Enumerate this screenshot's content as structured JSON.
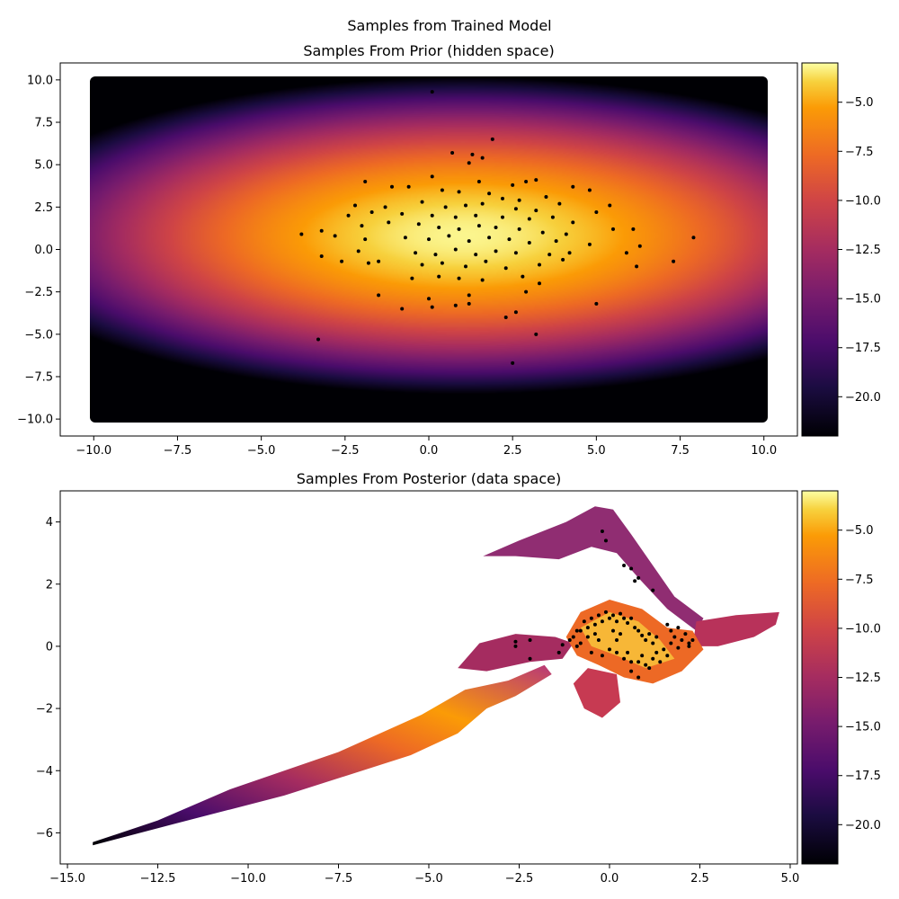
{
  "figure": {
    "suptitle": "Samples from Trained Model"
  },
  "chart_data": [
    {
      "type": "scatter",
      "title": "Samples From Prior (hidden space)",
      "xlabel": "",
      "ylabel": "",
      "xlim": [
        -11,
        11
      ],
      "ylim": [
        -11,
        11
      ],
      "xticks": [
        -10.0,
        -7.5,
        -5.0,
        -2.5,
        0.0,
        2.5,
        5.0,
        7.5,
        10.0
      ],
      "yticks": [
        -10.0,
        -7.5,
        -5.0,
        -2.5,
        0.0,
        2.5,
        5.0,
        7.5,
        10.0
      ],
      "xtick_labels": [
        "−10.0",
        "−7.5",
        "−5.0",
        "−2.5",
        "0.0",
        "2.5",
        "5.0",
        "7.5",
        "10.0"
      ],
      "ytick_labels": [
        "−10.0",
        "−7.5",
        "−5.0",
        "−2.5",
        "0.0",
        "2.5",
        "5.0",
        "7.5",
        "10.0"
      ],
      "grid": false,
      "background": {
        "type": "heatmap",
        "description_value": "log density of prior over [-10,10]x[-10,10]",
        "x_range": [
          -10,
          10
        ],
        "y_range": [
          -10,
          10
        ],
        "center": [
          1.0,
          0.8
        ],
        "sigma_x": 2.5,
        "sigma_y": 1.6,
        "colormap": "inferno",
        "value_range": [
          -22,
          -3
        ]
      },
      "colorbar": {
        "range": [
          -22,
          -3
        ],
        "ticks": [
          -5.0,
          -7.5,
          -10.0,
          -12.5,
          -15.0,
          -17.5,
          -20.0
        ],
        "tick_labels": [
          "−5.0",
          "−7.5",
          "−10.0",
          "−12.5",
          "−15.0",
          "−17.5",
          "−20.0"
        ]
      },
      "series": [
        {
          "points": [
            [
              0.1,
              9.3
            ],
            [
              1.9,
              6.5
            ],
            [
              0.7,
              5.7
            ],
            [
              1.3,
              5.6
            ],
            [
              1.6,
              5.4
            ],
            [
              1.2,
              5.1
            ],
            [
              3.2,
              4.1
            ],
            [
              2.9,
              4.0
            ],
            [
              -1.9,
              4.0
            ],
            [
              0.1,
              4.3
            ],
            [
              1.5,
              4.0
            ],
            [
              2.5,
              3.8
            ],
            [
              4.3,
              3.7
            ],
            [
              4.8,
              3.5
            ],
            [
              -1.1,
              3.7
            ],
            [
              -0.6,
              3.7
            ],
            [
              0.4,
              3.5
            ],
            [
              3.5,
              3.1
            ],
            [
              2.2,
              3.0
            ],
            [
              0.9,
              3.4
            ],
            [
              1.8,
              3.3
            ],
            [
              2.7,
              2.9
            ],
            [
              5.4,
              2.6
            ],
            [
              3.9,
              2.7
            ],
            [
              -2.2,
              2.6
            ],
            [
              -1.3,
              2.5
            ],
            [
              -0.2,
              2.8
            ],
            [
              0.5,
              2.5
            ],
            [
              1.1,
              2.6
            ],
            [
              1.6,
              2.7
            ],
            [
              2.6,
              2.4
            ],
            [
              3.2,
              2.3
            ],
            [
              5.0,
              2.2
            ],
            [
              -2.4,
              2.0
            ],
            [
              -1.7,
              2.2
            ],
            [
              -0.8,
              2.1
            ],
            [
              0.1,
              2.0
            ],
            [
              0.8,
              1.9
            ],
            [
              1.4,
              2.0
            ],
            [
              2.2,
              1.9
            ],
            [
              3.0,
              1.8
            ],
            [
              3.7,
              1.9
            ],
            [
              4.3,
              1.6
            ],
            [
              -3.8,
              0.9
            ],
            [
              -3.2,
              1.1
            ],
            [
              -2.0,
              1.4
            ],
            [
              -1.2,
              1.6
            ],
            [
              -0.3,
              1.5
            ],
            [
              0.3,
              1.3
            ],
            [
              0.9,
              1.2
            ],
            [
              1.5,
              1.4
            ],
            [
              2.0,
              1.3
            ],
            [
              2.7,
              1.2
            ],
            [
              3.4,
              1.0
            ],
            [
              4.1,
              0.9
            ],
            [
              5.5,
              1.2
            ],
            [
              6.1,
              1.2
            ],
            [
              -2.8,
              0.8
            ],
            [
              -1.9,
              0.6
            ],
            [
              -0.7,
              0.7
            ],
            [
              0.0,
              0.6
            ],
            [
              0.6,
              0.8
            ],
            [
              1.2,
              0.5
            ],
            [
              1.8,
              0.7
            ],
            [
              2.4,
              0.6
            ],
            [
              3.0,
              0.4
            ],
            [
              3.8,
              0.5
            ],
            [
              4.8,
              0.3
            ],
            [
              7.9,
              0.7
            ],
            [
              -3.2,
              -0.4
            ],
            [
              -2.1,
              -0.1
            ],
            [
              -1.5,
              -0.7
            ],
            [
              -0.4,
              -0.2
            ],
            [
              0.2,
              -0.3
            ],
            [
              0.8,
              0.0
            ],
            [
              1.4,
              -0.3
            ],
            [
              2.0,
              -0.1
            ],
            [
              2.6,
              -0.2
            ],
            [
              3.6,
              -0.3
            ],
            [
              4.2,
              -0.2
            ],
            [
              5.9,
              -0.2
            ],
            [
              6.3,
              0.2
            ],
            [
              -2.6,
              -0.7
            ],
            [
              -1.8,
              -0.8
            ],
            [
              -0.2,
              -0.9
            ],
            [
              0.4,
              -0.8
            ],
            [
              1.1,
              -1.0
            ],
            [
              1.7,
              -0.7
            ],
            [
              2.3,
              -1.1
            ],
            [
              3.3,
              -0.9
            ],
            [
              4.0,
              -0.6
            ],
            [
              6.2,
              -1.0
            ],
            [
              7.3,
              -0.7
            ],
            [
              -0.5,
              -1.7
            ],
            [
              0.3,
              -1.6
            ],
            [
              0.9,
              -1.7
            ],
            [
              1.6,
              -1.8
            ],
            [
              2.8,
              -1.6
            ],
            [
              3.3,
              -2.0
            ],
            [
              -1.5,
              -2.7
            ],
            [
              0.0,
              -2.9
            ],
            [
              1.2,
              -2.7
            ],
            [
              2.9,
              -2.5
            ],
            [
              -0.8,
              -3.5
            ],
            [
              0.1,
              -3.4
            ],
            [
              0.8,
              -3.3
            ],
            [
              1.2,
              -3.2
            ],
            [
              2.6,
              -3.7
            ],
            [
              2.3,
              -4.0
            ],
            [
              5.0,
              -3.2
            ],
            [
              3.2,
              -5.0
            ],
            [
              -3.3,
              -5.3
            ],
            [
              2.5,
              -6.7
            ]
          ]
        }
      ]
    },
    {
      "type": "scatter",
      "title": "Samples From Posterior (data space)",
      "xlabel": "",
      "ylabel": "",
      "xlim": [
        -15.2,
        5.2
      ],
      "ylim": [
        -7.0,
        5.0
      ],
      "xticks": [
        -15.0,
        -12.5,
        -10.0,
        -7.5,
        -5.0,
        -2.5,
        0.0,
        2.5,
        5.0
      ],
      "yticks": [
        4,
        2,
        0,
        -2,
        -4,
        -6
      ],
      "xtick_labels": [
        "−15.0",
        "−12.5",
        "−10.0",
        "−7.5",
        "−5.0",
        "−2.5",
        "0.0",
        "2.5",
        "5.0"
      ],
      "ytick_labels": [
        "4",
        "2",
        "0",
        "−2",
        "−4",
        "−6"
      ],
      "grid": false,
      "background": {
        "type": "heatmap",
        "description_value": "log density pushed forward to data space",
        "colormap": "inferno",
        "value_range": [
          -22,
          -3
        ]
      },
      "colorbar": {
        "range": [
          -22,
          -3
        ],
        "ticks": [
          -5.0,
          -7.5,
          -10.0,
          -12.5,
          -15.0,
          -17.5,
          -20.0
        ],
        "tick_labels": [
          "−5.0",
          "−7.5",
          "−10.0",
          "−12.5",
          "−15.0",
          "−17.5",
          "−20.0"
        ]
      },
      "series": [
        {
          "points": [
            [
              -0.2,
              3.7
            ],
            [
              -0.1,
              3.4
            ],
            [
              0.4,
              2.6
            ],
            [
              0.6,
              2.5
            ],
            [
              0.8,
              2.2
            ],
            [
              0.7,
              2.1
            ],
            [
              1.2,
              1.8
            ],
            [
              -2.6,
              0.15
            ],
            [
              -2.6,
              0.0
            ],
            [
              -2.2,
              0.2
            ],
            [
              -2.2,
              -0.4
            ],
            [
              -1.4,
              -0.2
            ],
            [
              -1.3,
              0.05
            ],
            [
              -1.0,
              0.3
            ],
            [
              -0.9,
              0.0
            ],
            [
              -0.8,
              0.5
            ],
            [
              -0.7,
              0.8
            ],
            [
              -0.6,
              0.6
            ],
            [
              -0.5,
              0.9
            ],
            [
              -0.4,
              0.7
            ],
            [
              -0.3,
              1.0
            ],
            [
              -0.2,
              0.8
            ],
            [
              -0.1,
              1.1
            ],
            [
              0.0,
              0.9
            ],
            [
              0.1,
              1.0
            ],
            [
              0.2,
              0.8
            ],
            [
              0.3,
              1.05
            ],
            [
              0.4,
              0.9
            ],
            [
              0.5,
              0.75
            ],
            [
              0.6,
              0.9
            ],
            [
              0.7,
              0.6
            ],
            [
              0.8,
              0.5
            ],
            [
              0.9,
              0.35
            ],
            [
              1.0,
              0.2
            ],
            [
              1.1,
              0.4
            ],
            [
              1.2,
              0.1
            ],
            [
              -0.8,
              0.1
            ],
            [
              -0.6,
              0.3
            ],
            [
              -0.5,
              -0.2
            ],
            [
              -0.3,
              0.2
            ],
            [
              -0.2,
              -0.3
            ],
            [
              0.0,
              -0.1
            ],
            [
              0.2,
              -0.2
            ],
            [
              0.4,
              -0.4
            ],
            [
              0.5,
              -0.2
            ],
            [
              0.6,
              -0.5
            ],
            [
              0.8,
              -0.5
            ],
            [
              0.9,
              -0.3
            ],
            [
              1.0,
              -0.6
            ],
            [
              1.2,
              -0.4
            ],
            [
              1.3,
              -0.2
            ],
            [
              1.4,
              -0.5
            ],
            [
              1.5,
              -0.1
            ],
            [
              1.6,
              -0.3
            ],
            [
              1.7,
              0.1
            ],
            [
              1.8,
              0.3
            ],
            [
              1.9,
              -0.05
            ],
            [
              2.0,
              0.2
            ],
            [
              2.1,
              0.4
            ],
            [
              2.2,
              0.1
            ],
            [
              2.3,
              0.2
            ],
            [
              1.6,
              0.7
            ],
            [
              1.7,
              0.5
            ],
            [
              1.9,
              0.6
            ],
            [
              0.6,
              -0.8
            ],
            [
              0.8,
              -1.0
            ],
            [
              1.1,
              -0.7
            ],
            [
              0.3,
              0.4
            ],
            [
              0.1,
              0.5
            ],
            [
              -0.4,
              0.4
            ],
            [
              0.2,
              0.2
            ],
            [
              1.3,
              0.3
            ],
            [
              -1.1,
              0.2
            ],
            [
              -0.9,
              0.5
            ],
            [
              2.2,
              0.0
            ]
          ]
        }
      ]
    }
  ]
}
